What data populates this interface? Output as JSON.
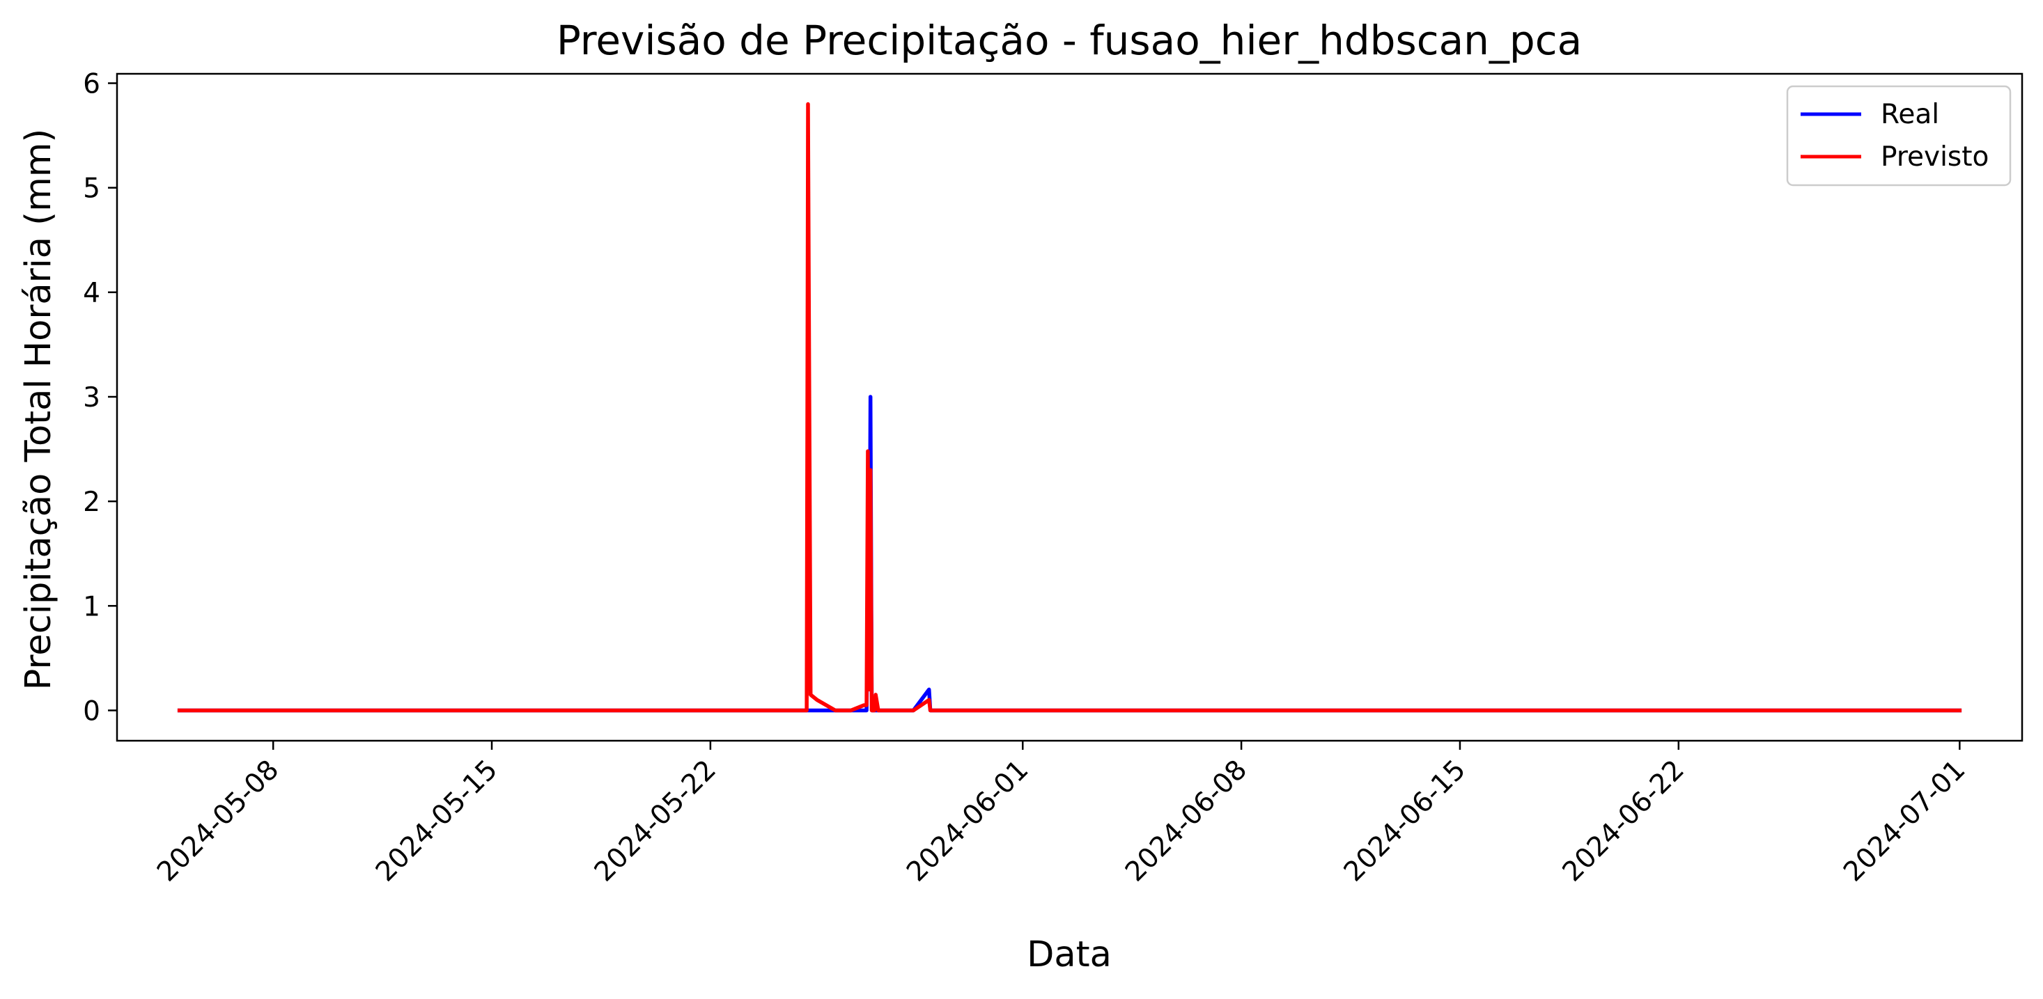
{
  "chart_data": {
    "type": "line",
    "title": "Previsão de Precipitação - fusao_hier_hdbscan_pca",
    "xlabel": "Data",
    "ylabel": "Precipitação Total Horária (mm)",
    "xlim": [
      "2024-05-03",
      "2024-07-03"
    ],
    "ylim": [
      -0.29,
      6.09
    ],
    "x_ticks": [
      "2024-05-08",
      "2024-05-15",
      "2024-05-22",
      "2024-06-01",
      "2024-06-08",
      "2024-06-15",
      "2024-06-22",
      "2024-07-01"
    ],
    "y_ticks": [
      0,
      1,
      2,
      3,
      4,
      5,
      6
    ],
    "grid": false,
    "legend_position": "top-right",
    "series": [
      {
        "name": "Real",
        "color": "#0000ff",
        "x": [
          "2024-05-05 00:00",
          "2024-05-25 02:00",
          "2024-05-25 03:00",
          "2024-05-25 06:00",
          "2024-05-26 00:00",
          "2024-05-26 12:00",
          "2024-05-26 22:00",
          "2024-05-27 00:00",
          "2024-05-27 01:00",
          "2024-05-27 02:00",
          "2024-05-27 03:00",
          "2024-05-27 04:00",
          "2024-05-27 06:00",
          "2024-05-27 08:00",
          "2024-05-28 12:00",
          "2024-05-29 00:00",
          "2024-05-29 01:00",
          "2024-05-29 02:00",
          "2024-07-01 00:00"
        ],
        "y": [
          0,
          0,
          0,
          0,
          0,
          0,
          0,
          0,
          1.0,
          0.4,
          3.0,
          0,
          0,
          0,
          0,
          0.2,
          0,
          0,
          0
        ]
      },
      {
        "name": "Previsto",
        "color": "#ff0000",
        "x": [
          "2024-05-05 00:00",
          "2024-05-25 02:00",
          "2024-05-25 03:00",
          "2024-05-25 05:00",
          "2024-05-25 10:00",
          "2024-05-26 00:00",
          "2024-05-26 12:00",
          "2024-05-26 22:00",
          "2024-05-27 00:00",
          "2024-05-27 01:00",
          "2024-05-27 02:00",
          "2024-05-27 03:00",
          "2024-05-27 04:00",
          "2024-05-27 06:00",
          "2024-05-27 07:00",
          "2024-05-27 09:00",
          "2024-05-28 12:00",
          "2024-05-29 00:00",
          "2024-05-29 01:00",
          "2024-05-29 02:00",
          "2024-07-01 00:00"
        ],
        "y": [
          0,
          0,
          5.8,
          0.15,
          0.1,
          0,
          0,
          0.05,
          0.05,
          2.48,
          0.2,
          2.3,
          0,
          0,
          0.15,
          0,
          0,
          0.1,
          0,
          0,
          0
        ]
      }
    ]
  }
}
